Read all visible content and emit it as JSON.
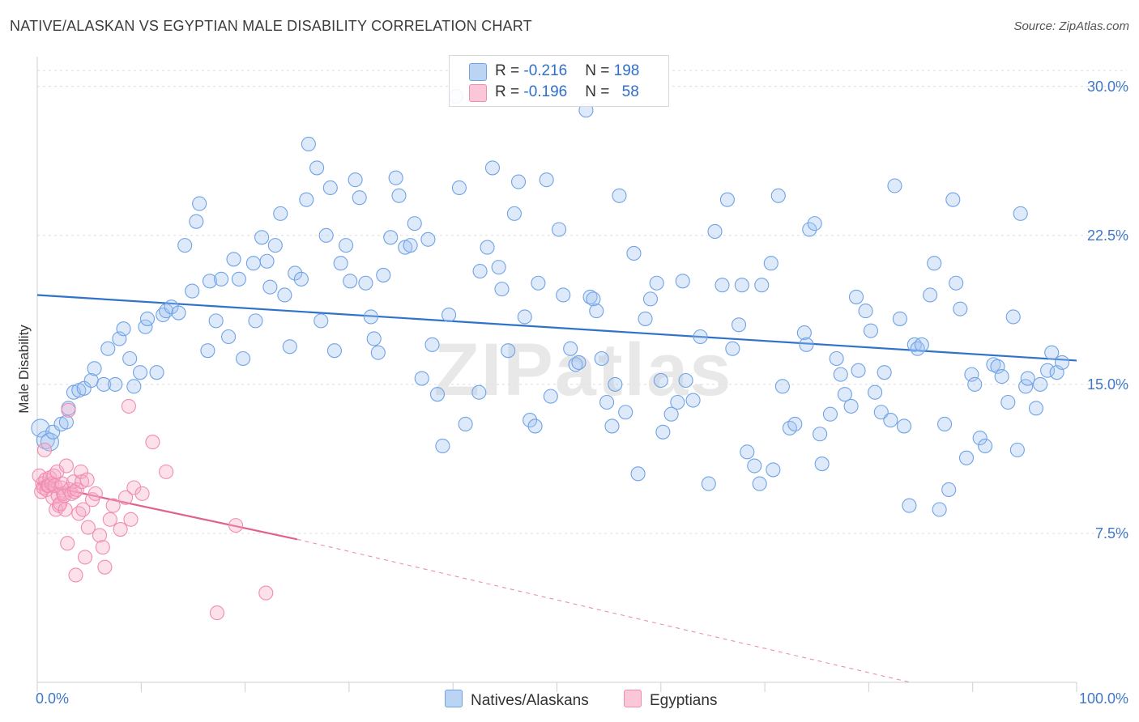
{
  "chart_data": {
    "type": "scatter",
    "title": "NATIVE/ALASKAN VS EGYPTIAN MALE DISABILITY CORRELATION CHART",
    "source": "Source: ZipAtlas.com",
    "watermark": "ZIPatlas",
    "xlabel": "",
    "ylabel": "Male Disability",
    "xlim": [
      0,
      100
    ],
    "ylim": [
      0,
      31.5
    ],
    "x_tick_labels": [
      "0.0%",
      "100.0%"
    ],
    "y_ticks": [
      7.5,
      15.0,
      22.5,
      30.0
    ],
    "y_tick_labels": [
      "7.5%",
      "15.0%",
      "22.5%",
      "30.0%"
    ],
    "grid": true,
    "legend_position": "top-center",
    "legend": [
      {
        "r_label": "R = ",
        "r_value": "-0.216",
        "n_label": "N = ",
        "n_value": "198"
      },
      {
        "r_label": "R = ",
        "r_value": "-0.196",
        "n_label": "N = ",
        "n_value": "58"
      }
    ],
    "series": [
      {
        "name": "Natives/Alaskans",
        "color": "#6fa3e6",
        "line_color": "#2f72cc",
        "trend": {
          "x0": 0,
          "y0": 19.5,
          "x1": 100,
          "y1": 16.2
        },
        "points": [
          [
            0.3,
            12.8
          ],
          [
            0.8,
            12.2
          ],
          [
            1.2,
            12.1
          ],
          [
            1.5,
            12.6
          ],
          [
            2.3,
            13.0
          ],
          [
            2.8,
            13.1
          ],
          [
            3.0,
            13.8
          ],
          [
            3.5,
            14.6
          ],
          [
            4.0,
            14.7
          ],
          [
            4.5,
            14.8
          ],
          [
            5.2,
            15.2
          ],
          [
            5.5,
            15.8
          ],
          [
            6.4,
            15.0
          ],
          [
            6.8,
            16.8
          ],
          [
            7.5,
            15.0
          ],
          [
            7.9,
            17.3
          ],
          [
            8.3,
            17.8
          ],
          [
            8.9,
            16.3
          ],
          [
            9.3,
            14.9
          ],
          [
            9.9,
            15.6
          ],
          [
            10.4,
            17.9
          ],
          [
            10.6,
            18.3
          ],
          [
            11.5,
            15.6
          ],
          [
            12.1,
            18.5
          ],
          [
            12.4,
            18.7
          ],
          [
            12.9,
            18.9
          ],
          [
            13.6,
            18.6
          ],
          [
            14.2,
            22.0
          ],
          [
            14.9,
            19.7
          ],
          [
            15.3,
            23.2
          ],
          [
            15.6,
            24.1
          ],
          [
            16.4,
            16.7
          ],
          [
            16.6,
            20.2
          ],
          [
            17.2,
            18.2
          ],
          [
            17.7,
            20.3
          ],
          [
            18.4,
            17.4
          ],
          [
            18.9,
            21.3
          ],
          [
            19.4,
            20.3
          ],
          [
            19.8,
            16.3
          ],
          [
            20.8,
            21.1
          ],
          [
            21.0,
            18.2
          ],
          [
            21.6,
            22.4
          ],
          [
            22.1,
            21.2
          ],
          [
            22.4,
            19.9
          ],
          [
            22.9,
            22.0
          ],
          [
            23.4,
            23.6
          ],
          [
            23.8,
            19.5
          ],
          [
            24.3,
            16.9
          ],
          [
            24.8,
            20.6
          ],
          [
            25.4,
            20.3
          ],
          [
            25.9,
            24.3
          ],
          [
            26.1,
            27.1
          ],
          [
            26.9,
            25.9
          ],
          [
            27.3,
            18.2
          ],
          [
            27.8,
            22.5
          ],
          [
            28.2,
            24.9
          ],
          [
            28.6,
            16.7
          ],
          [
            29.2,
            21.1
          ],
          [
            29.7,
            22.0
          ],
          [
            30.1,
            20.2
          ],
          [
            30.6,
            25.3
          ],
          [
            31.0,
            24.4
          ],
          [
            31.6,
            20.1
          ],
          [
            32.1,
            18.4
          ],
          [
            32.4,
            17.3
          ],
          [
            32.8,
            16.6
          ],
          [
            33.3,
            20.5
          ],
          [
            34.0,
            22.4
          ],
          [
            34.5,
            25.4
          ],
          [
            34.8,
            24.5
          ],
          [
            35.4,
            21.9
          ],
          [
            35.9,
            22.0
          ],
          [
            36.3,
            23.1
          ],
          [
            37.0,
            15.3
          ],
          [
            37.6,
            22.3
          ],
          [
            38.0,
            17.0
          ],
          [
            38.5,
            14.5
          ],
          [
            39.0,
            11.9
          ],
          [
            39.6,
            18.5
          ],
          [
            40.3,
            29.5
          ],
          [
            40.6,
            24.9
          ],
          [
            41.2,
            13.0
          ],
          [
            42.5,
            14.6
          ],
          [
            42.6,
            20.7
          ],
          [
            43.3,
            21.9
          ],
          [
            43.8,
            25.9
          ],
          [
            44.4,
            20.9
          ],
          [
            44.7,
            19.8
          ],
          [
            45.3,
            16.7
          ],
          [
            45.9,
            23.6
          ],
          [
            46.3,
            25.2
          ],
          [
            46.9,
            18.4
          ],
          [
            47.4,
            13.2
          ],
          [
            47.9,
            12.9
          ],
          [
            48.2,
            20.1
          ],
          [
            49.0,
            25.3
          ],
          [
            49.4,
            14.4
          ],
          [
            50.2,
            22.8
          ],
          [
            50.6,
            19.5
          ],
          [
            51.3,
            16.8
          ],
          [
            51.8,
            16.0
          ],
          [
            52.1,
            16.1
          ],
          [
            52.8,
            28.8
          ],
          [
            53.2,
            19.4
          ],
          [
            53.5,
            19.3
          ],
          [
            53.8,
            18.7
          ],
          [
            54.3,
            16.3
          ],
          [
            54.8,
            14.1
          ],
          [
            55.3,
            12.9
          ],
          [
            55.6,
            15.0
          ],
          [
            56.0,
            24.5
          ],
          [
            56.6,
            13.6
          ],
          [
            57.4,
            21.6
          ],
          [
            57.8,
            10.5
          ],
          [
            58.5,
            18.3
          ],
          [
            59.0,
            19.3
          ],
          [
            59.6,
            20.1
          ],
          [
            60.0,
            15.2
          ],
          [
            60.2,
            12.6
          ],
          [
            61.0,
            13.5
          ],
          [
            61.6,
            14.1
          ],
          [
            62.1,
            20.2
          ],
          [
            62.4,
            15.2
          ],
          [
            63.1,
            14.2
          ],
          [
            63.8,
            17.4
          ],
          [
            64.6,
            10.0
          ],
          [
            65.2,
            22.7
          ],
          [
            65.9,
            20.0
          ],
          [
            66.4,
            24.3
          ],
          [
            66.9,
            16.8
          ],
          [
            67.5,
            18.0
          ],
          [
            67.8,
            20.0
          ],
          [
            68.3,
            11.6
          ],
          [
            69.0,
            10.9
          ],
          [
            69.5,
            10.0
          ],
          [
            69.7,
            20.0
          ],
          [
            70.8,
            10.7
          ],
          [
            70.6,
            21.1
          ],
          [
            71.3,
            24.5
          ],
          [
            71.7,
            14.9
          ],
          [
            72.4,
            12.8
          ],
          [
            72.9,
            13.0
          ],
          [
            73.8,
            17.6
          ],
          [
            74.0,
            17.0
          ],
          [
            74.3,
            22.8
          ],
          [
            74.8,
            23.1
          ],
          [
            75.3,
            12.5
          ],
          [
            75.5,
            11.0
          ],
          [
            76.3,
            13.5
          ],
          [
            76.9,
            16.3
          ],
          [
            77.3,
            15.5
          ],
          [
            77.7,
            14.5
          ],
          [
            78.3,
            13.9
          ],
          [
            78.8,
            19.4
          ],
          [
            79.0,
            15.7
          ],
          [
            79.7,
            18.7
          ],
          [
            80.2,
            17.7
          ],
          [
            80.6,
            14.6
          ],
          [
            81.2,
            13.6
          ],
          [
            81.5,
            15.6
          ],
          [
            82.1,
            13.2
          ],
          [
            82.5,
            25.0
          ],
          [
            83.0,
            18.3
          ],
          [
            83.4,
            12.9
          ],
          [
            83.9,
            8.9
          ],
          [
            84.4,
            17.0
          ],
          [
            84.7,
            16.8
          ],
          [
            85.1,
            17.0
          ],
          [
            85.9,
            19.5
          ],
          [
            86.3,
            21.1
          ],
          [
            86.8,
            8.7
          ],
          [
            87.3,
            13.0
          ],
          [
            87.7,
            9.7
          ],
          [
            88.1,
            24.3
          ],
          [
            88.4,
            20.1
          ],
          [
            88.8,
            18.8
          ],
          [
            89.4,
            11.3
          ],
          [
            89.9,
            15.5
          ],
          [
            90.2,
            15.0
          ],
          [
            90.7,
            12.3
          ],
          [
            91.2,
            11.9
          ],
          [
            92.0,
            16.0
          ],
          [
            92.4,
            15.9
          ],
          [
            92.8,
            15.4
          ],
          [
            93.4,
            14.1
          ],
          [
            93.9,
            18.4
          ],
          [
            94.3,
            11.7
          ],
          [
            94.6,
            23.6
          ],
          [
            95.1,
            14.9
          ],
          [
            95.3,
            15.3
          ],
          [
            96.1,
            13.8
          ],
          [
            96.5,
            15.0
          ],
          [
            97.2,
            15.7
          ],
          [
            97.6,
            16.6
          ],
          [
            98.1,
            15.6
          ],
          [
            98.6,
            16.1
          ]
        ]
      },
      {
        "name": "Egyptians",
        "color": "#f08caf",
        "line_color": "#e0608e",
        "trend": {
          "x0": 0,
          "y0": 10.0,
          "x1": 25,
          "y1": 7.2
        },
        "trend_extension": {
          "x0": 25,
          "y0": 7.2,
          "x1": 84,
          "y1": 0.0
        },
        "points": [
          [
            0.2,
            10.4
          ],
          [
            0.4,
            9.6
          ],
          [
            0.5,
            10.0
          ],
          [
            0.6,
            9.8
          ],
          [
            0.7,
            11.7
          ],
          [
            0.8,
            10.2
          ],
          [
            0.9,
            9.7
          ],
          [
            1.0,
            9.9
          ],
          [
            1.1,
            9.9
          ],
          [
            1.2,
            10.3
          ],
          [
            1.4,
            10.0
          ],
          [
            1.5,
            9.3
          ],
          [
            1.6,
            10.4
          ],
          [
            1.7,
            9.9
          ],
          [
            1.8,
            8.7
          ],
          [
            1.9,
            10.6
          ],
          [
            2.0,
            9.4
          ],
          [
            2.1,
            8.9
          ],
          [
            2.2,
            9.0
          ],
          [
            2.3,
            9.8
          ],
          [
            2.4,
            10.0
          ],
          [
            2.5,
            9.5
          ],
          [
            2.6,
            9.4
          ],
          [
            2.7,
            8.7
          ],
          [
            2.8,
            10.9
          ],
          [
            2.9,
            7.0
          ],
          [
            3.0,
            13.7
          ],
          [
            3.1,
            9.7
          ],
          [
            3.3,
            9.5
          ],
          [
            3.5,
            10.1
          ],
          [
            3.6,
            9.6
          ],
          [
            3.7,
            5.4
          ],
          [
            3.8,
            9.7
          ],
          [
            4.0,
            8.5
          ],
          [
            4.2,
            10.6
          ],
          [
            4.3,
            10.1
          ],
          [
            4.4,
            8.7
          ],
          [
            4.6,
            6.3
          ],
          [
            4.8,
            10.2
          ],
          [
            4.9,
            7.8
          ],
          [
            5.3,
            9.2
          ],
          [
            5.6,
            9.5
          ],
          [
            6.0,
            7.4
          ],
          [
            6.3,
            6.8
          ],
          [
            6.5,
            5.8
          ],
          [
            7.0,
            8.2
          ],
          [
            7.3,
            8.9
          ],
          [
            8.0,
            7.7
          ],
          [
            8.5,
            9.3
          ],
          [
            8.8,
            13.9
          ],
          [
            9.0,
            8.2
          ],
          [
            9.3,
            9.8
          ],
          [
            10.1,
            9.5
          ],
          [
            11.1,
            12.1
          ],
          [
            12.4,
            10.6
          ],
          [
            17.3,
            3.5
          ],
          [
            19.1,
            7.9
          ],
          [
            22.0,
            4.5
          ]
        ]
      }
    ]
  }
}
